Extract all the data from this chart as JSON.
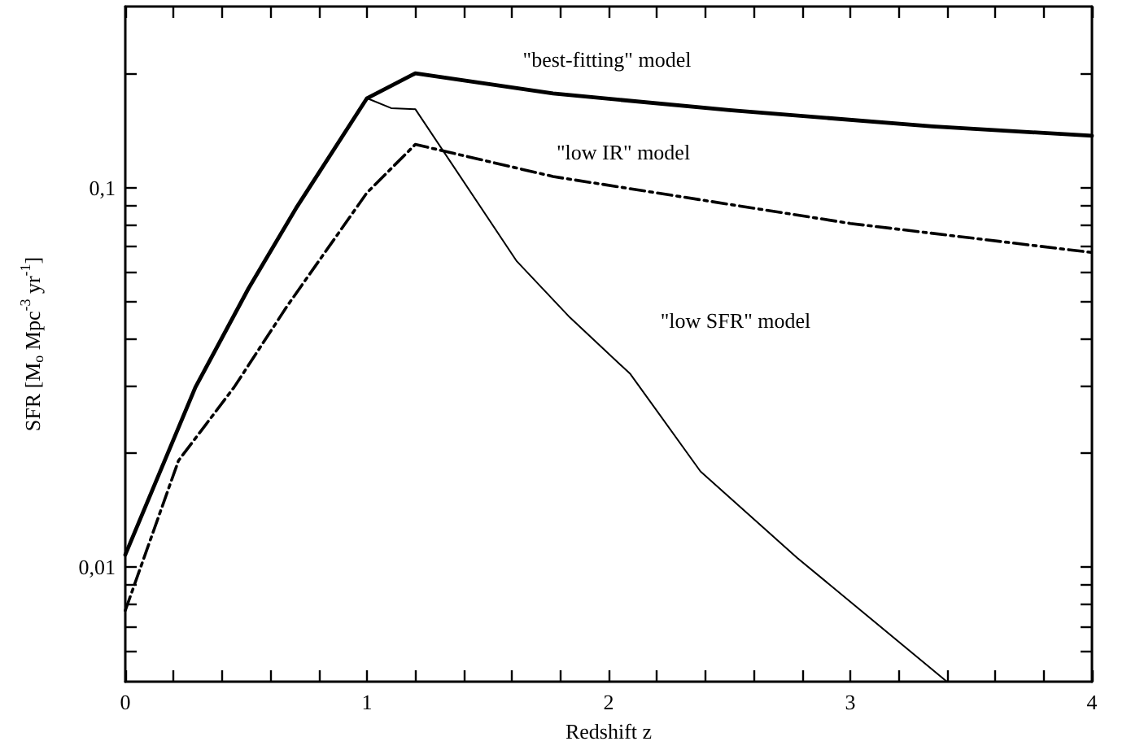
{
  "chart_data": {
    "type": "line",
    "xlabel": "Redshift z",
    "ylabel": "SFR [M$_{o}$ Mpc$^{-3}$ yr$^{-1}$]",
    "log": "y",
    "grid": false,
    "marker": "none",
    "xlim": [
      0,
      4
    ],
    "ylim": [
      0.005,
      0.3
    ],
    "xticks": [
      0,
      {
        "value": 0.2,
        "label": null
      },
      {
        "value": 0.4,
        "label": null
      },
      {
        "value": 0.6,
        "label": null
      },
      {
        "value": 0.8,
        "label": null
      },
      1,
      {
        "value": 1.2,
        "label": null
      },
      {
        "value": 1.4,
        "label": null
      },
      {
        "value": 1.6,
        "label": null
      },
      {
        "value": 1.8,
        "label": null
      },
      2,
      {
        "value": 2.2,
        "label": null
      },
      {
        "value": 2.4,
        "label": null
      },
      {
        "value": 2.6,
        "label": null
      },
      {
        "value": 2.8,
        "label": null
      },
      3,
      {
        "value": 3.2,
        "label": null
      },
      {
        "value": 3.4,
        "label": null
      },
      {
        "value": 3.6,
        "label": null
      },
      {
        "value": 3.8,
        "label": null
      },
      4
    ],
    "yticks": [
      {
        "value": 0.006,
        "label": null
      },
      {
        "value": 0.007,
        "label": null
      },
      {
        "value": 0.008,
        "label": null
      },
      {
        "value": 0.009,
        "label": null
      },
      {
        "value": 0.01,
        "label": "0,01"
      },
      {
        "value": 0.02,
        "label": null
      },
      {
        "value": 0.03,
        "label": null
      },
      {
        "value": 0.04,
        "label": null
      },
      {
        "value": 0.05,
        "label": null
      },
      {
        "value": 0.06,
        "label": null
      },
      {
        "value": 0.07,
        "label": null
      },
      {
        "value": 0.08,
        "label": null
      },
      {
        "value": 0.09,
        "label": null
      },
      {
        "value": 0.1,
        "label": "0,1"
      },
      {
        "value": 0.2,
        "label": null
      }
    ],
    "series": [
      {
        "name": "\"best-fitting\" model",
        "color": "#000000",
        "line_style": "solid",
        "x": [
          0,
          0.29,
          0.51,
          0.71,
          1,
          1.2,
          1.77,
          2.5,
          3.34,
          4
        ],
        "values": [
          0.0108,
          0.0298,
          0.0543,
          0.089,
          0.172,
          0.2,
          0.177,
          0.16,
          0.145,
          0.137
        ]
      },
      {
        "name": "\"low IR\" model",
        "color": "#000000",
        "line_style": "dashdot",
        "x": [
          0,
          0.22,
          0.45,
          0.67,
          1,
          1.2,
          1.77,
          3,
          4
        ],
        "values": [
          0.0077,
          0.0191,
          0.0298,
          0.0488,
          0.097,
          0.13,
          0.107,
          0.0805,
          0.0675
        ]
      },
      {
        "name": "\"low SFR\" model",
        "color": "#000000",
        "line_style": "solid",
        "x": [
          1,
          1.1,
          1.2,
          1.62,
          1.84,
          2.09,
          2.38,
          2.78,
          3.4
        ],
        "values": [
          0.172,
          0.162,
          0.161,
          0.064,
          0.0455,
          0.0323,
          0.0179,
          0.0106,
          0.005
        ]
      }
    ]
  }
}
